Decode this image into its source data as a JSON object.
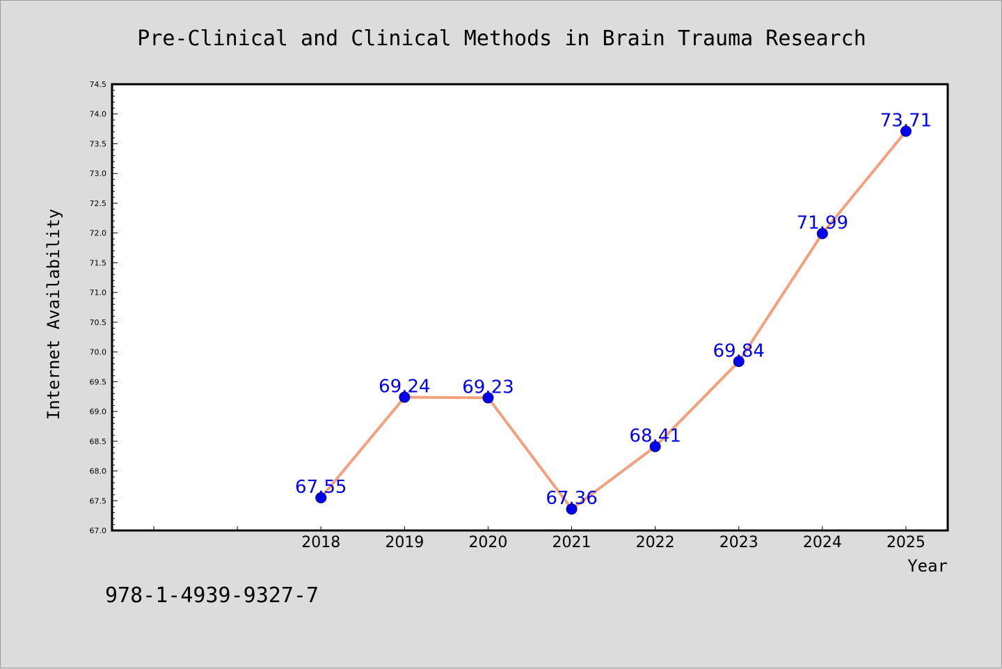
{
  "colors": {
    "line": "#f4a07e",
    "marker": "#0000ee",
    "marker_edge": "#00007a",
    "data_label": "#0000ee",
    "plot_bg": "#ffffff",
    "page_bg": "#dcdcdc"
  },
  "footer": {
    "isbn": "978-1-4939-9327-7"
  },
  "chart_data": {
    "type": "line",
    "title": "Pre-Clinical and Clinical Methods in Brain Trauma Research",
    "xlabel": "Year",
    "ylabel": "Internet Availability",
    "x": [
      2018,
      2019,
      2020,
      2021,
      2022,
      2023,
      2024,
      2025
    ],
    "series": [
      {
        "values": [
          67.55,
          69.24,
          69.23,
          67.36,
          68.41,
          69.84,
          71.99,
          73.71
        ]
      }
    ],
    "data_labels": [
      "67.55",
      "69.24",
      "69.23",
      "67.36",
      "68.41",
      "69.84",
      "71.99",
      "73.71"
    ],
    "xlim": [
      2015.5,
      2025.5
    ],
    "ylim": [
      67.0,
      74.5
    ],
    "yticks": [
      "67.0",
      "67.5",
      "68.0",
      "68.5",
      "69.0",
      "69.5",
      "70.0",
      "70.5",
      "71.0",
      "71.5",
      "72.0",
      "72.5",
      "73.0",
      "73.5",
      "74.0",
      "74.5"
    ],
    "xticks": [
      "2018",
      "2019",
      "2020",
      "2021",
      "2022",
      "2023",
      "2024",
      "2025"
    ],
    "grid": false,
    "legend": "none"
  }
}
